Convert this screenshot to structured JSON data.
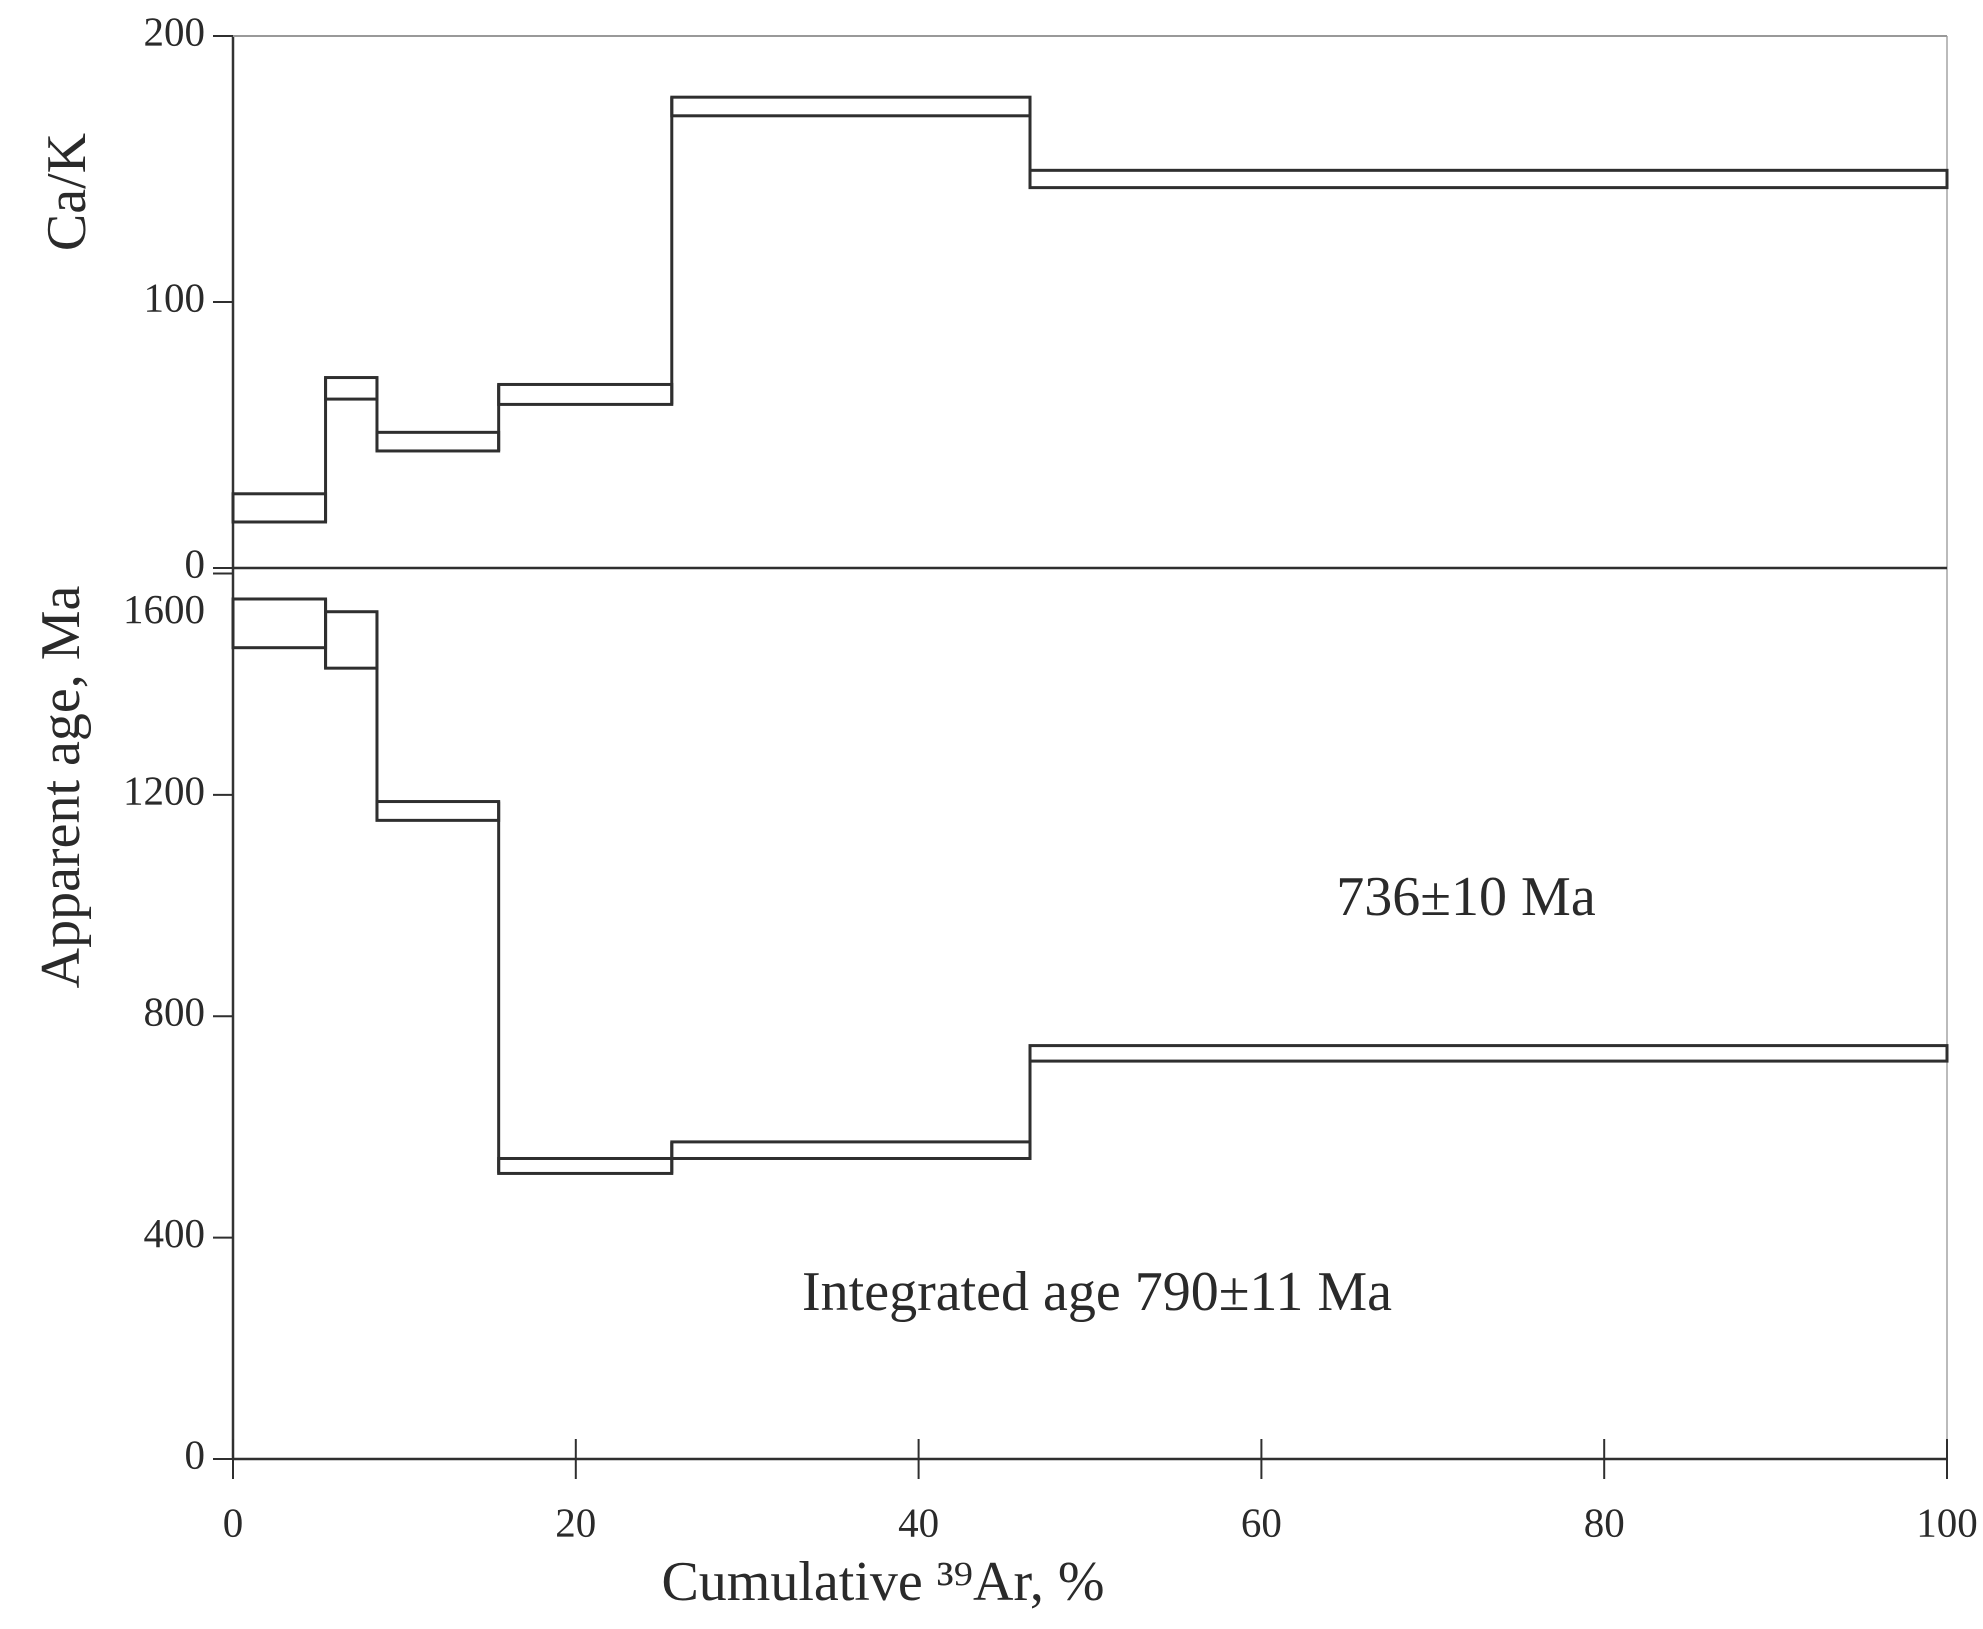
{
  "chart_data": [
    {
      "type": "step-range",
      "ylabel": "Ca/K",
      "xlim": [
        0,
        100
      ],
      "ylim": [
        0,
        200
      ],
      "yticks": [
        0,
        100,
        200
      ],
      "x_edges": [
        0,
        5.4,
        8.4,
        15.5,
        25.6,
        46.5,
        100
      ],
      "upper": [
        27.9,
        71.6,
        51,
        69,
        177,
        149.5
      ],
      "lower": [
        17.3,
        63.5,
        44,
        61.5,
        170,
        143
      ]
    },
    {
      "type": "step-range",
      "ylabel": "Apparent age, Ma",
      "xlabel": "Cumulative ³⁹Ar, %",
      "xlim": [
        0,
        100
      ],
      "xticks": [
        0,
        20,
        40,
        60,
        80,
        100
      ],
      "ylim": [
        0,
        1610
      ],
      "yticks": [
        0,
        400,
        800,
        1200,
        1600
      ],
      "x_edges": [
        0,
        5.4,
        8.4,
        15.5,
        25.6,
        46.5,
        100
      ],
      "upper": [
        1554,
        1531,
        1188,
        543,
        573,
        747
      ],
      "lower": [
        1466,
        1429,
        1154,
        516,
        543,
        719
      ],
      "annotations": [
        "736±10 Ma",
        "Integrated age 790±11 Ma"
      ]
    }
  ]
}
